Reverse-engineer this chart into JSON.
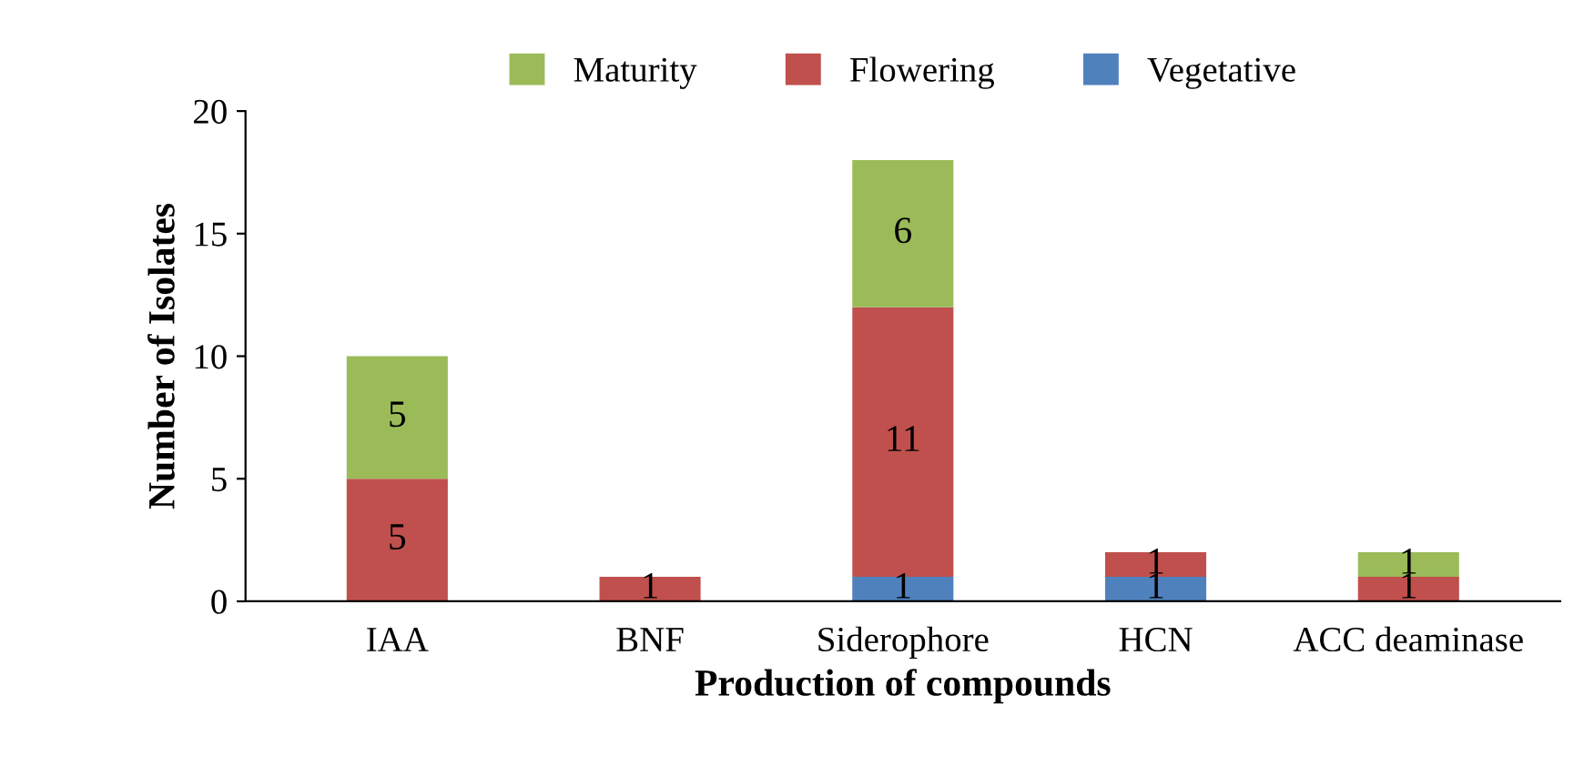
{
  "chart_data": {
    "type": "bar",
    "stacked": true,
    "xlabel": "Production of compounds",
    "ylabel": "Number of Isolates",
    "categories": [
      "IAA",
      "BNF",
      "Siderophore",
      "HCN",
      "ACC deaminase"
    ],
    "series": [
      {
        "name": "Vegetative",
        "color": "#4f81bd",
        "values": [
          0,
          0,
          1,
          1,
          0
        ],
        "value_labels": [
          null,
          null,
          "1",
          "1",
          null
        ]
      },
      {
        "name": "Flowering",
        "color": "#c0504d",
        "values": [
          5,
          1,
          11,
          1,
          1
        ],
        "value_labels": [
          "5",
          "1",
          "11",
          "1",
          "1"
        ]
      },
      {
        "name": "Maturity",
        "color": "#9bbb59",
        "values": [
          5,
          0,
          6,
          0,
          1
        ],
        "value_labels": [
          "5",
          null,
          "6",
          null,
          "1"
        ]
      }
    ],
    "ylim": [
      0,
      20
    ],
    "yticks": [
      0,
      5,
      10,
      15,
      20
    ],
    "grid": false,
    "legend": "top"
  }
}
